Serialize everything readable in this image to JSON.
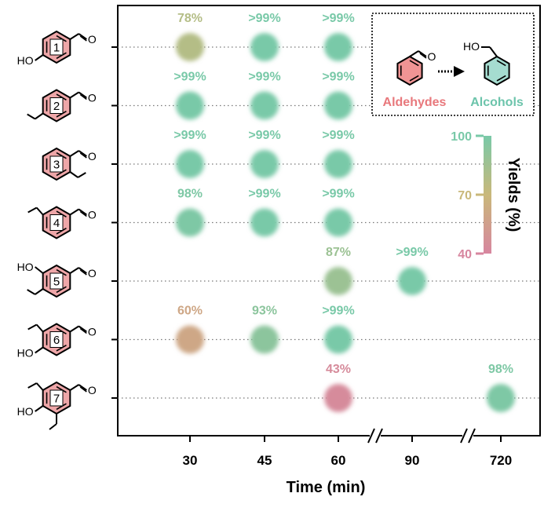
{
  "chart_data": {
    "type": "scatter",
    "xlabel": "Time (min)",
    "x_ticks": [
      "30",
      "45",
      "60",
      "90",
      "720"
    ],
    "axis_break_after": "60",
    "rows": [
      "1",
      "2",
      "3",
      "4",
      "5",
      "6",
      "7"
    ],
    "points": [
      {
        "compound": "1",
        "time": 30,
        "yield": 78,
        "label": "78%"
      },
      {
        "compound": "1",
        "time": 45,
        "yield": 100,
        "label": ">99%"
      },
      {
        "compound": "1",
        "time": 60,
        "yield": 100,
        "label": ">99%"
      },
      {
        "compound": "2",
        "time": 30,
        "yield": 100,
        "label": ">99%"
      },
      {
        "compound": "2",
        "time": 45,
        "yield": 100,
        "label": ">99%"
      },
      {
        "compound": "2",
        "time": 60,
        "yield": 100,
        "label": ">99%"
      },
      {
        "compound": "3",
        "time": 30,
        "yield": 100,
        "label": ">99%"
      },
      {
        "compound": "3",
        "time": 45,
        "yield": 100,
        "label": ">99%"
      },
      {
        "compound": "3",
        "time": 60,
        "yield": 100,
        "label": ">99%"
      },
      {
        "compound": "4",
        "time": 30,
        "yield": 98,
        "label": "98%"
      },
      {
        "compound": "4",
        "time": 45,
        "yield": 100,
        "label": ">99%"
      },
      {
        "compound": "4",
        "time": 60,
        "yield": 100,
        "label": ">99%"
      },
      {
        "compound": "5",
        "time": 60,
        "yield": 87,
        "label": "87%"
      },
      {
        "compound": "5",
        "time": 90,
        "yield": 100,
        "label": ">99%"
      },
      {
        "compound": "6",
        "time": 30,
        "yield": 60,
        "label": "60%"
      },
      {
        "compound": "6",
        "time": 45,
        "yield": 93,
        "label": "93%"
      },
      {
        "compound": "6",
        "time": 60,
        "yield": 100,
        "label": ">99%"
      },
      {
        "compound": "7",
        "time": 60,
        "yield": 43,
        "label": "43%"
      },
      {
        "compound": "7",
        "time": 720,
        "yield": 98,
        "label": "98%"
      }
    ],
    "colorbar": {
      "title": "Yields (%)",
      "range": [
        40,
        100
      ],
      "ticks": [
        "100",
        "70",
        "40"
      ],
      "stops": [
        {
          "value": 40,
          "color": "#d7869f"
        },
        {
          "value": 70,
          "color": "#c9b87a"
        },
        {
          "value": 100,
          "color": "#79c9a8"
        }
      ]
    },
    "legend": {
      "reactant": "Aldehydes",
      "product": "Alcohols",
      "reactant_color": "#e8787c",
      "product_color": "#6cc4ab",
      "atom_labels": [
        "O",
        "HO"
      ]
    },
    "structures": [
      {
        "id": "1",
        "subs": [
          {
            "pos": "p",
            "kind": "OH"
          }
        ]
      },
      {
        "id": "2",
        "subs": [
          {
            "pos": "p",
            "kind": "OMe"
          }
        ]
      },
      {
        "id": "3",
        "subs": [
          {
            "pos": "o",
            "kind": "OMe"
          }
        ]
      },
      {
        "id": "4",
        "subs": [
          {
            "pos": "m",
            "kind": "OMe"
          }
        ]
      },
      {
        "id": "5",
        "subs": [
          {
            "pos": "m",
            "kind": "OH"
          },
          {
            "pos": "p",
            "kind": "OMe"
          }
        ]
      },
      {
        "id": "6",
        "subs": [
          {
            "pos": "m",
            "kind": "OMe"
          },
          {
            "pos": "p",
            "kind": "OH"
          }
        ]
      },
      {
        "id": "7",
        "subs": [
          {
            "pos": "m",
            "kind": "OMe"
          },
          {
            "pos": "p",
            "kind": "OH"
          },
          {
            "pos": "m2",
            "kind": "OMe"
          }
        ]
      }
    ],
    "atom_texts": {
      "oh": "HO",
      "o": "O"
    },
    "grid": false
  }
}
